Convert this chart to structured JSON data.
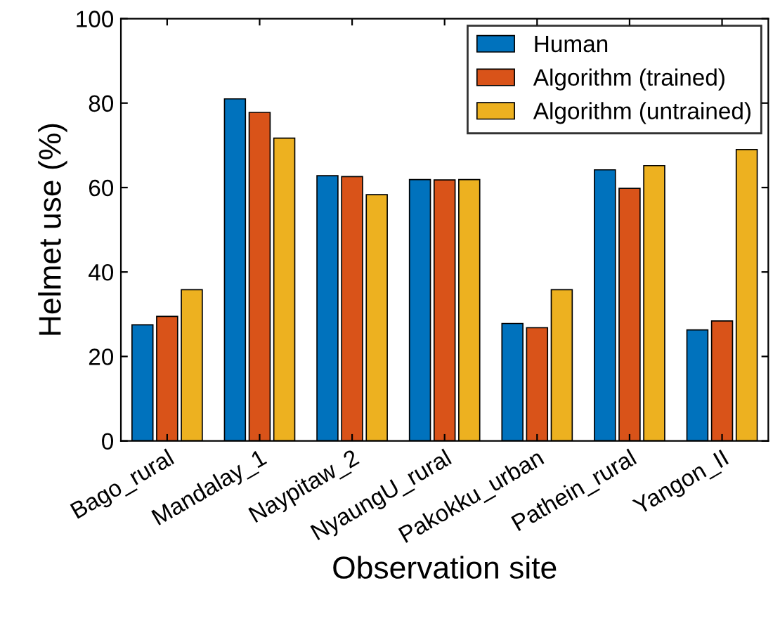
{
  "chart_data": {
    "type": "bar",
    "xlabel": "Observation site",
    "ylabel": "Helmet use (%)",
    "categories": [
      "Bago_rural",
      "Mandalay_1",
      "Naypitaw_2",
      "NyaungU_rural",
      "Pakokku_urban",
      "Pathein_rural",
      "Yangon_II"
    ],
    "series": [
      {
        "name": "Human",
        "color": "#0072bd",
        "values": [
          27.5,
          81,
          62.8,
          61.9,
          27.8,
          64.2,
          26.3
        ]
      },
      {
        "name": "Algorithm (trained)",
        "color": "#d95319",
        "values": [
          29.5,
          77.8,
          62.6,
          61.8,
          26.8,
          59.8,
          28.4
        ]
      },
      {
        "name": "Algorithm (untrained)",
        "color": "#edb120",
        "values": [
          35.8,
          71.7,
          58.3,
          61.9,
          35.8,
          65.2,
          69
        ]
      }
    ],
    "ylim": [
      0,
      100
    ],
    "yticks": [
      0,
      20,
      40,
      60,
      80,
      100
    ],
    "grid": false,
    "legend": "top right"
  }
}
